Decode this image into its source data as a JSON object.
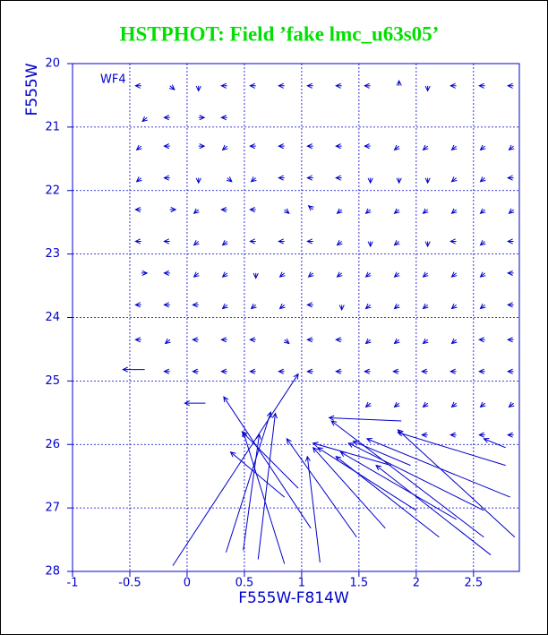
{
  "chart_data": {
    "type": "vector",
    "title": "HSTPHOT: Field ’fake lmc_u63s05’",
    "annotation": "WF4",
    "xlabel": "F555W-F814W",
    "ylabel": "F555W",
    "xlim": [
      -1,
      2.9
    ],
    "ylim": [
      20,
      28
    ],
    "xticks": [
      -1,
      -0.5,
      0,
      0.5,
      1,
      1.5,
      2,
      2.5
    ],
    "yticks": [
      20,
      21,
      22,
      23,
      24,
      25,
      26,
      27,
      28
    ],
    "y_inverted": true,
    "grid": true,
    "color": "#0000cc",
    "title_color": "#00e000",
    "x": [
      -0.4,
      -0.15,
      0.1,
      0.35,
      0.6,
      0.85,
      1.1,
      1.35,
      1.6,
      1.85,
      2.1,
      2.35,
      2.6,
      2.85,
      -0.35,
      -0.15,
      0.1,
      0.35,
      -0.4,
      -0.15,
      0.1,
      0.35,
      0.6,
      0.85,
      1.1,
      1.35,
      1.6,
      1.85,
      2.1,
      2.35,
      2.6,
      2.85,
      -0.4,
      -0.15,
      0.1,
      0.35,
      0.6,
      0.85,
      1.1,
      1.35,
      1.6,
      1.85,
      2.1,
      2.35,
      2.6,
      2.85,
      -0.4,
      -0.15,
      0.1,
      0.35,
      0.6,
      0.85,
      1.1,
      1.35,
      1.6,
      1.85,
      2.1,
      2.35,
      2.6,
      2.85,
      -0.4,
      -0.15,
      0.1,
      0.35,
      0.6,
      0.85,
      1.1,
      1.35,
      1.6,
      1.85,
      2.1,
      2.35,
      2.6,
      2.85,
      -0.4,
      -0.15,
      0.1,
      0.35,
      0.6,
      0.85,
      1.1,
      1.35,
      1.6,
      1.85,
      2.1,
      2.35,
      2.6,
      2.85,
      -0.4,
      -0.15,
      0.1,
      0.35,
      0.6,
      0.85,
      1.1,
      1.35,
      1.6,
      1.85,
      2.1,
      2.35,
      2.6,
      2.85,
      -0.4,
      -0.15,
      0.1,
      0.35,
      0.6,
      0.85,
      1.1,
      1.35,
      1.6,
      1.85,
      2.1,
      2.35,
      2.6,
      2.85,
      -0.15,
      0.1,
      0.35,
      0.6,
      0.85,
      1.1,
      1.35,
      1.6,
      1.85,
      2.1,
      2.35,
      2.6,
      2.85,
      1.6,
      1.85,
      2.1,
      2.35,
      2.6,
      2.85,
      2.1,
      2.35,
      2.6,
      2.85,
      -0.125,
      -0.37,
      0.16,
      1.08,
      0.34,
      0.62,
      0.85,
      0.85,
      1.16,
      0.49,
      0.97,
      1.48,
      2.59,
      2.86,
      2.82,
      2.78,
      2.59,
      2.35,
      2.65,
      2.2,
      1.73,
      2.78,
      1.78,
      1.95,
      2.0,
      1.87
    ],
    "y": [
      20.35,
      20.35,
      20.35,
      20.35,
      20.35,
      20.35,
      20.35,
      20.35,
      20.35,
      20.35,
      20.35,
      20.35,
      20.35,
      20.35,
      20.85,
      20.85,
      20.85,
      20.85,
      21.3,
      21.3,
      21.3,
      21.3,
      21.3,
      21.3,
      21.3,
      21.3,
      21.3,
      21.3,
      21.3,
      21.3,
      21.3,
      21.3,
      21.8,
      21.8,
      21.8,
      21.8,
      21.8,
      21.8,
      21.8,
      21.8,
      21.8,
      21.8,
      21.8,
      21.8,
      21.8,
      21.8,
      22.3,
      22.3,
      22.3,
      22.3,
      22.3,
      22.3,
      22.3,
      22.3,
      22.3,
      22.3,
      22.3,
      22.3,
      22.3,
      22.3,
      22.8,
      22.8,
      22.8,
      22.8,
      22.8,
      22.8,
      22.8,
      22.8,
      22.8,
      22.8,
      22.8,
      22.8,
      22.8,
      22.8,
      23.3,
      23.3,
      23.3,
      23.3,
      23.3,
      23.3,
      23.3,
      23.3,
      23.3,
      23.3,
      23.3,
      23.3,
      23.3,
      23.3,
      23.8,
      23.8,
      23.8,
      23.8,
      23.8,
      23.8,
      23.8,
      23.8,
      23.8,
      23.8,
      23.8,
      23.8,
      23.8,
      23.8,
      24.35,
      24.35,
      24.35,
      24.35,
      24.35,
      24.35,
      24.35,
      24.35,
      24.35,
      24.35,
      24.35,
      24.35,
      24.35,
      24.35,
      24.85,
      24.85,
      24.85,
      24.85,
      24.85,
      24.85,
      24.85,
      24.85,
      24.85,
      24.85,
      24.85,
      24.85,
      24.85,
      25.35,
      25.35,
      25.35,
      25.35,
      25.35,
      25.35,
      25.85,
      25.85,
      25.85,
      25.85,
      27.91,
      24.82,
      25.35,
      27.32,
      27.7,
      27.81,
      27.88,
      26.83,
      27.86,
      27.67,
      26.69,
      27.46,
      27.46,
      27.46,
      26.83,
      26.33,
      27.04,
      27.18,
      27.74,
      27.46,
      27.32,
      26.05,
      26.33,
      26.33,
      27.04,
      25.63
    ],
    "dx": [
      -0.05,
      0.04,
      0,
      -0.05,
      -0.05,
      -0.05,
      -0.05,
      -0.05,
      -0.05,
      0,
      0,
      -0.05,
      -0.05,
      -0.05,
      -0.04,
      -0.05,
      0.05,
      -0.05,
      -0.04,
      -0.05,
      0.05,
      -0.04,
      -0.05,
      -0.05,
      -0.05,
      -0.05,
      -0.05,
      -0.04,
      -0.04,
      -0.04,
      -0.04,
      -0.04,
      -0.04,
      -0.05,
      0,
      0.04,
      -0.04,
      -0.05,
      -0.05,
      -0.05,
      0,
      0,
      0,
      -0.04,
      -0.04,
      -0.05,
      -0.05,
      0.05,
      -0.04,
      -0.05,
      -0.05,
      0.04,
      -0.04,
      -0.04,
      -0.04,
      -0.04,
      -0.04,
      -0.04,
      -0.04,
      -0.04,
      -0.05,
      -0.05,
      -0.04,
      -0.04,
      -0.05,
      -0.05,
      -0.05,
      -0.04,
      0,
      -0.04,
      0,
      -0.05,
      -0.04,
      -0.05,
      0.05,
      -0.05,
      -0.04,
      -0.04,
      0,
      -0.04,
      -0.04,
      -0.04,
      -0.04,
      -0.04,
      -0.04,
      -0.04,
      -0.04,
      -0.05,
      -0.05,
      -0.05,
      -0.05,
      -0.04,
      -0.04,
      -0.04,
      -0.05,
      0,
      -0.04,
      -0.04,
      -0.04,
      -0.04,
      -0.04,
      -0.05,
      -0.05,
      -0.04,
      -0.05,
      -0.05,
      -0.05,
      0.04,
      -0.05,
      -0.05,
      -0.04,
      -0.04,
      -0.04,
      -0.04,
      -0.05,
      -0.05,
      -0.05,
      -0.05,
      -0.05,
      -0.05,
      -0.05,
      -0.05,
      -0.05,
      -0.05,
      -0.05,
      -0.05,
      -0.05,
      -0.05,
      -0.05,
      -0.04,
      -0.04,
      -0.04,
      -0.04,
      -0.04,
      -0.04,
      -0.05,
      -0.05,
      -0.05,
      -0.05,
      1.095,
      -0.19,
      -0.18,
      -0.76,
      0.39,
      0.15,
      -0.36,
      -0.47,
      -0.11,
      0.14,
      -0.49,
      -0.61,
      -1.33,
      -1.02,
      -1.25,
      -0.94,
      -1.18,
      -1.01,
      -1.0,
      -0.9,
      -0.63,
      -0.19,
      -0.68,
      -0.5,
      -0.86,
      -0.63
    ],
    "dy": [
      0,
      0.06,
      0.08,
      0,
      0,
      0,
      0,
      0,
      0,
      -0.08,
      0.08,
      0,
      0,
      0,
      0.06,
      0,
      0,
      0,
      0.06,
      0,
      0,
      0.06,
      0,
      0,
      0,
      0,
      0,
      0.06,
      0.06,
      0.06,
      0.06,
      0.06,
      0.06,
      0,
      0.08,
      0.06,
      0.06,
      0,
      0,
      0,
      0.08,
      0.08,
      0.08,
      0.06,
      0.06,
      0,
      0,
      0,
      0.06,
      0,
      0,
      0.06,
      -0.06,
      0.06,
      0.06,
      0.06,
      0.06,
      0.06,
      0.06,
      0.06,
      0,
      0,
      0.06,
      0.06,
      0,
      0,
      0,
      0.06,
      0.08,
      0.06,
      0.08,
      0,
      0.06,
      0,
      0,
      0,
      0.06,
      0.06,
      0.08,
      0.06,
      0.06,
      0.06,
      0.06,
      0.06,
      0.06,
      0.06,
      0.06,
      0,
      0,
      0,
      0,
      0.06,
      0.06,
      0.06,
      0,
      0.08,
      0.06,
      0.06,
      0.06,
      0.06,
      0.06,
      0,
      0,
      0.06,
      0,
      0,
      0,
      0.06,
      0,
      0,
      0.06,
      0.06,
      0.06,
      0.06,
      0,
      0,
      0,
      0,
      0,
      0,
      0,
      0,
      0,
      0,
      0,
      0,
      0,
      0,
      0,
      0.06,
      0.06,
      0.06,
      0.06,
      0.06,
      0.06,
      0,
      0,
      0,
      0,
      -3.02,
      0,
      0,
      -2.07,
      -2.21,
      -2.3,
      -2.08,
      -0.71,
      -1.67,
      -1.83,
      -0.89,
      -1.55,
      -1.83,
      -1.69,
      -0.92,
      -0.52,
      -1.06,
      -1.06,
      -1.41,
      -1.27,
      -1.27,
      -0.14,
      -0.35,
      -0.38,
      -0.99,
      -0.05
    ]
  }
}
